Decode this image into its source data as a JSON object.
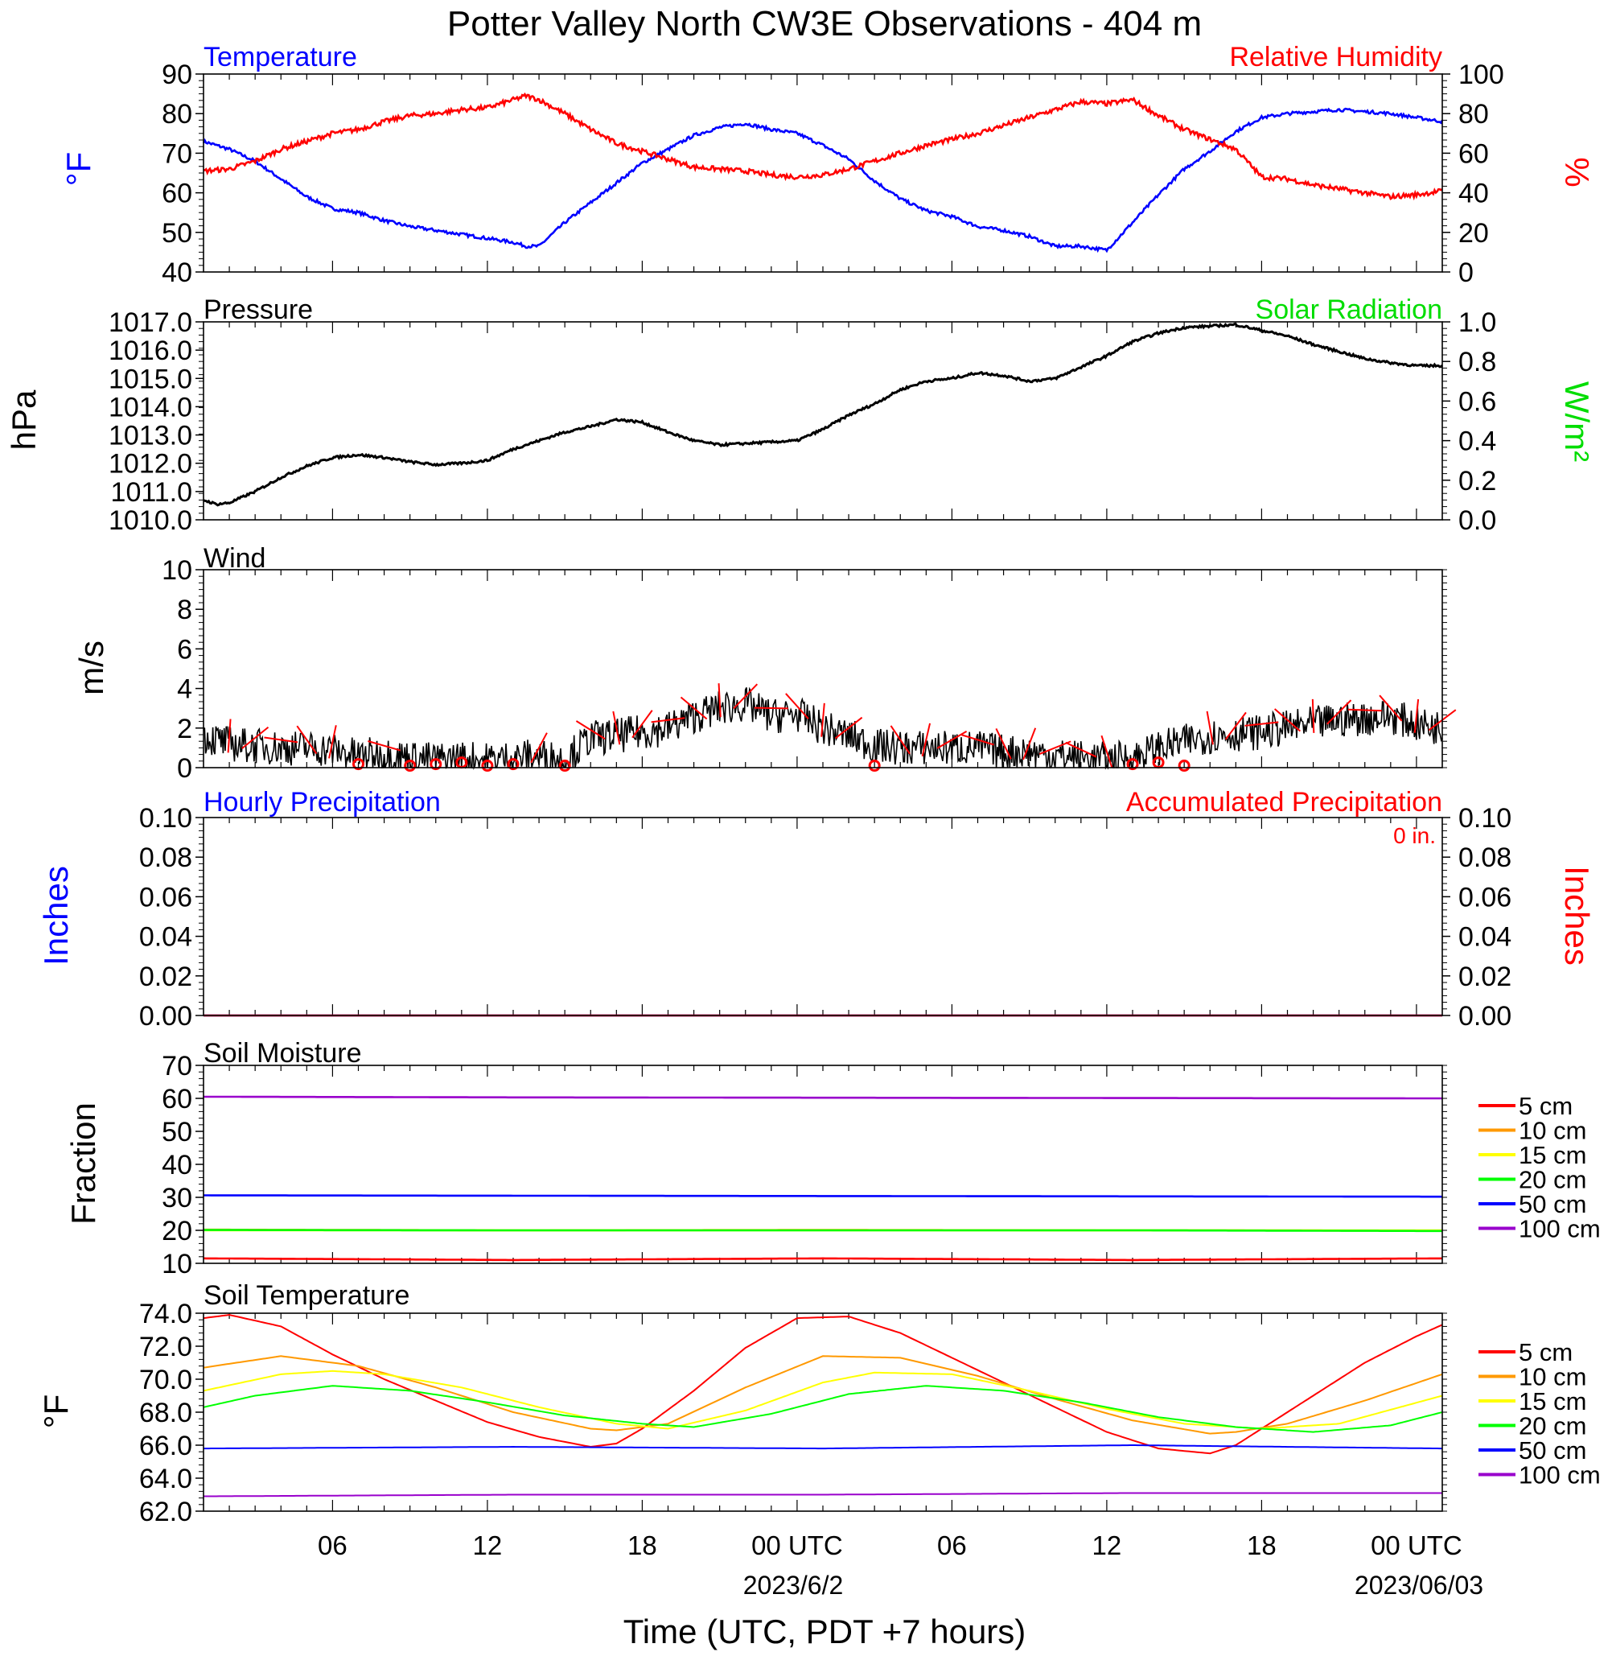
{
  "title": "Potter Valley North CW3E Observations - 404 m",
  "xlabel": "Time (UTC, PDT +7 hours)",
  "x_ticks": [
    "06",
    "12",
    "18",
    "00 UTC",
    "06",
    "12",
    "18",
    "00 UTC"
  ],
  "x_date_labels": [
    "2023/6/2",
    "2023/06/03"
  ],
  "colors": {
    "temperature": "#0000ff",
    "humidity": "#ff0000",
    "solar": "#00dd00",
    "pressure": "#000000",
    "wind": "#000000",
    "barb": "#ff0000"
  },
  "panels": {
    "temp": {
      "left_title": "Temperature",
      "right_title": "Relative Humidity",
      "ylabel": "°F",
      "ylabel_right": "%",
      "yticks": [
        "90",
        "80",
        "70",
        "60",
        "50",
        "40"
      ],
      "yticks_right": [
        "100",
        "80",
        "60",
        "40",
        "20",
        "0"
      ]
    },
    "pres": {
      "left_title": "Pressure",
      "right_title": "Solar Radiation",
      "ylabel": "hPa",
      "ylabel_right": "W/m²",
      "yticks": [
        "1017.0",
        "1016.0",
        "1015.0",
        "1014.0",
        "1013.0",
        "1012.0",
        "1011.0",
        "1010.0"
      ],
      "yticks_right": [
        "1.0",
        "0.8",
        "0.6",
        "0.4",
        "0.2",
        "0.0"
      ]
    },
    "wind": {
      "left_title": "Wind",
      "ylabel": "m/s",
      "yticks": [
        "10",
        "8",
        "6",
        "4",
        "2",
        "0"
      ]
    },
    "precip": {
      "left_title": "Hourly Precipitation",
      "right_title": "Accumulated Precipitation",
      "total": "0 in.",
      "ylabel": "Inches",
      "ylabel_right": "Inches",
      "yticks": [
        "0.10",
        "0.08",
        "0.06",
        "0.04",
        "0.02",
        "0.00"
      ],
      "yticks_right": [
        "0.10",
        "0.08",
        "0.06",
        "0.04",
        "0.02",
        "0.00"
      ]
    },
    "soilm": {
      "left_title": "Soil Moisture",
      "ylabel": "Fraction",
      "yticks": [
        "70",
        "60",
        "50",
        "40",
        "30",
        "20",
        "10"
      ]
    },
    "soilt": {
      "left_title": "Soil Temperature",
      "ylabel": "°F",
      "yticks": [
        "74.0",
        "72.0",
        "70.0",
        "68.0",
        "66.0",
        "64.0",
        "62.0"
      ]
    }
  },
  "legend": [
    {
      "label": "5 cm",
      "color": "#ff0000"
    },
    {
      "label": "10 cm",
      "color": "#ff9900"
    },
    {
      "label": "15 cm",
      "color": "#ffff00"
    },
    {
      "label": "20 cm",
      "color": "#00ff00"
    },
    {
      "label": "50 cm",
      "color": "#0000ff"
    },
    {
      "label": "100 cm",
      "color": "#9900cc"
    }
  ],
  "chart_data": [
    {
      "type": "line",
      "panel": "temp",
      "x_unit": "hours since 2023-06-01 00 UTC",
      "xlim": [
        1,
        49
      ],
      "ylim": [
        40,
        90
      ],
      "y2lim": [
        0,
        100
      ],
      "series": [
        {
          "axis": "left",
          "x": [
            1,
            2,
            3,
            4,
            5,
            6,
            7,
            8,
            9,
            10,
            11,
            12,
            13,
            13.5,
            14,
            15,
            16,
            17,
            18,
            19,
            20,
            21,
            22,
            23,
            24,
            25,
            26,
            27,
            28,
            29,
            30,
            31,
            32,
            33,
            34,
            35,
            36,
            37,
            38,
            39,
            40,
            41,
            42,
            43,
            44,
            45,
            46,
            47,
            48,
            49
          ],
          "y": [
            73,
            71,
            68,
            63.5,
            59,
            56,
            55,
            53,
            51.5,
            50.5,
            49.5,
            48.5,
            47.5,
            46.5,
            46.5,
            52.5,
            57.5,
            62.5,
            67.5,
            71,
            74.5,
            76.5,
            77.5,
            76,
            75,
            72,
            68.5,
            63,
            58.5,
            55.5,
            54,
            51.5,
            50.5,
            49,
            46.5,
            46.5,
            45.5,
            52.5,
            59.5,
            66,
            70.5,
            75.5,
            79,
            80,
            80.5,
            81,
            80.5,
            80,
            79,
            78
          ]
        },
        {
          "axis": "right",
          "x": [
            1,
            2,
            3,
            4,
            5,
            6,
            7,
            8,
            9,
            10,
            11,
            12,
            13,
            13.5,
            14,
            15,
            16,
            17,
            18,
            19,
            20,
            21,
            22,
            23,
            24,
            25,
            26,
            27,
            28,
            29,
            30,
            31,
            32,
            33,
            34,
            35,
            36,
            37,
            38,
            39,
            40,
            41,
            42,
            43,
            44,
            45,
            46,
            47,
            48,
            49
          ],
          "y": [
            51,
            52,
            56,
            62,
            66,
            70,
            72,
            76,
            79,
            80,
            82,
            83,
            87,
            89,
            87,
            80,
            72,
            65,
            61,
            57,
            53,
            52,
            51,
            49,
            48,
            49,
            52,
            56,
            60,
            64,
            67,
            70,
            74,
            78,
            82,
            86,
            85,
            87,
            79,
            72,
            67,
            62,
            48,
            47,
            44,
            42,
            40,
            38,
            39,
            41
          ]
        }
      ]
    },
    {
      "type": "line",
      "panel": "pres",
      "x_unit": "hours since 2023-06-01 00 UTC",
      "xlim": [
        1,
        49
      ],
      "ylim": [
        1010,
        1017
      ],
      "series": [
        {
          "x": [
            1,
            1.5,
            2,
            3,
            4,
            5,
            6,
            7,
            8,
            9,
            10,
            11,
            12,
            13,
            14,
            15,
            16,
            17,
            18,
            19,
            20,
            21,
            22,
            23,
            24,
            25,
            26,
            27,
            28,
            29,
            30,
            31,
            32,
            33,
            34,
            35,
            36,
            37,
            38,
            39,
            40,
            41,
            42,
            43,
            44,
            45,
            46,
            47,
            48,
            49
          ],
          "y": [
            1010.7,
            1010.55,
            1010.6,
            1011,
            1011.5,
            1011.9,
            1012.2,
            1012.3,
            1012.2,
            1012.05,
            1011.95,
            1012,
            1012.1,
            1012.5,
            1012.8,
            1013.1,
            1013.3,
            1013.55,
            1013.45,
            1013.1,
            1012.8,
            1012.65,
            1012.7,
            1012.75,
            1012.8,
            1013.2,
            1013.7,
            1014.1,
            1014.6,
            1014.9,
            1015,
            1015.2,
            1015.1,
            1014.9,
            1015,
            1015.4,
            1015.8,
            1016.3,
            1016.6,
            1016.8,
            1016.85,
            1016.9,
            1016.7,
            1016.5,
            1016.2,
            1015.95,
            1015.7,
            1015.55,
            1015.45,
            1015.45
          ]
        }
      ]
    },
    {
      "type": "line",
      "panel": "wind",
      "x_unit": "hours since 2023-06-01 00 UTC",
      "xlim": [
        1,
        49
      ],
      "ylim": [
        0,
        10
      ],
      "series": [
        {
          "x": [
            1,
            2,
            3,
            4,
            5,
            6,
            7,
            8,
            9,
            10,
            11,
            12,
            13,
            14,
            15,
            16,
            17,
            18,
            19,
            20,
            21,
            22,
            23,
            24,
            25,
            26,
            27,
            28,
            29,
            30,
            31,
            32,
            33,
            34,
            35,
            36,
            37,
            38,
            39,
            40,
            41,
            42,
            43,
            44,
            45,
            46,
            47,
            48,
            49
          ],
          "y": [
            1.6,
            1.2,
            1.1,
            1.0,
            1.0,
            0.9,
            0.6,
            0.7,
            0.5,
            0.4,
            0.5,
            0.4,
            0.5,
            0.6,
            0.4,
            1.5,
            1.6,
            1.8,
            2.0,
            2.6,
            3.0,
            3.2,
            2.6,
            2.7,
            2.0,
            1.6,
            1.1,
            1.0,
            1.0,
            1.0,
            1.0,
            0.8,
            0.8,
            0.6,
            0.5,
            0.4,
            0.5,
            1.0,
            1.3,
            1.6,
            1.7,
            1.8,
            2.0,
            2.2,
            2.4,
            2.5,
            2.6,
            2.2,
            2.0
          ]
        }
      ],
      "calm_hours": [
        7,
        9,
        10,
        11,
        12,
        13,
        15,
        27,
        37,
        38,
        39
      ]
    },
    {
      "type": "line",
      "panel": "precip",
      "x_unit": "hours since 2023-06-01 00 UTC",
      "xlim": [
        1,
        49
      ],
      "ylim": [
        0,
        0.1
      ],
      "series": [
        {
          "x": [
            1,
            49
          ],
          "y": [
            0,
            0
          ]
        },
        {
          "x": [
            1,
            49
          ],
          "y": [
            0,
            0
          ]
        }
      ]
    },
    {
      "type": "line",
      "panel": "soilm",
      "x_unit": "hours since 2023-06-01 00 UTC",
      "xlim": [
        1,
        49
      ],
      "ylim": [
        10,
        70
      ],
      "series": [
        {
          "x": [
            1,
            13,
            25,
            37,
            49
          ],
          "y": [
            11.5,
            11,
            11.5,
            11,
            11.5
          ]
        },
        {
          "x": [
            1,
            13,
            25,
            37,
            49
          ],
          "y": [
            20.2,
            20,
            20.1,
            20,
            19.9
          ]
        },
        {
          "x": [
            1,
            13,
            25,
            37,
            49
          ],
          "y": [
            20,
            20,
            20,
            20,
            20
          ]
        },
        {
          "x": [
            1,
            13,
            25,
            37,
            49
          ],
          "y": [
            20.1,
            20,
            20,
            20,
            19.8
          ]
        },
        {
          "x": [
            1,
            13,
            25,
            37,
            49
          ],
          "y": [
            30.6,
            30.5,
            30.4,
            30.3,
            30.2
          ]
        },
        {
          "x": [
            1,
            13,
            25,
            37,
            49
          ],
          "y": [
            60.5,
            60.3,
            60.2,
            60.1,
            60
          ]
        }
      ]
    },
    {
      "type": "line",
      "panel": "soilt",
      "x_unit": "hours since 2023-06-01 00 UTC",
      "xlim": [
        1,
        49
      ],
      "ylim": [
        62,
        74
      ],
      "series": [
        {
          "x": [
            1,
            2,
            4,
            6,
            8,
            10,
            12,
            14,
            16,
            17,
            18,
            20,
            22,
            24,
            26,
            28,
            30,
            32,
            34,
            36,
            38,
            40,
            41,
            42,
            44,
            46,
            48,
            49
          ],
          "y": [
            73.7,
            73.9,
            73.2,
            71.5,
            70,
            68.7,
            67.4,
            66.5,
            65.9,
            66.1,
            67,
            69.3,
            71.9,
            73.7,
            73.8,
            72.8,
            71.3,
            69.8,
            68.3,
            66.8,
            65.8,
            65.5,
            66,
            67,
            69,
            71,
            72.6,
            73.3
          ]
        },
        {
          "x": [
            1,
            4,
            7,
            10,
            13,
            16,
            17,
            19,
            22,
            25,
            28,
            31,
            34,
            37,
            40,
            41,
            43,
            46,
            49
          ],
          "y": [
            70.7,
            71.4,
            70.8,
            69.5,
            68,
            67,
            66.9,
            67.3,
            69.5,
            71.4,
            71.3,
            70.2,
            68.8,
            67.5,
            66.7,
            66.8,
            67.3,
            68.7,
            70.3
          ]
        },
        {
          "x": [
            1,
            4,
            6,
            8,
            11,
            14,
            17,
            19,
            22,
            25,
            27,
            30,
            33,
            36,
            39,
            42,
            45,
            49
          ],
          "y": [
            69.3,
            70.3,
            70.5,
            70.3,
            69.5,
            68.3,
            67.3,
            67,
            68.1,
            69.8,
            70.4,
            70.3,
            69.3,
            68.2,
            67.3,
            67,
            67.3,
            69
          ]
        },
        {
          "x": [
            1,
            3,
            6,
            9,
            12,
            15,
            18,
            20,
            23,
            26,
            29,
            32,
            35,
            38,
            41,
            44,
            47,
            49
          ],
          "y": [
            68.3,
            69,
            69.6,
            69.3,
            68.6,
            67.8,
            67.3,
            67.1,
            67.9,
            69.1,
            69.6,
            69.3,
            68.6,
            67.7,
            67.1,
            66.8,
            67.2,
            68
          ]
        },
        {
          "x": [
            1,
            13,
            25,
            37,
            49
          ],
          "y": [
            65.8,
            65.9,
            65.8,
            66,
            65.8
          ]
        },
        {
          "x": [
            1,
            13,
            25,
            37,
            49
          ],
          "y": [
            62.9,
            63,
            63,
            63.1,
            63.1
          ]
        }
      ]
    }
  ]
}
